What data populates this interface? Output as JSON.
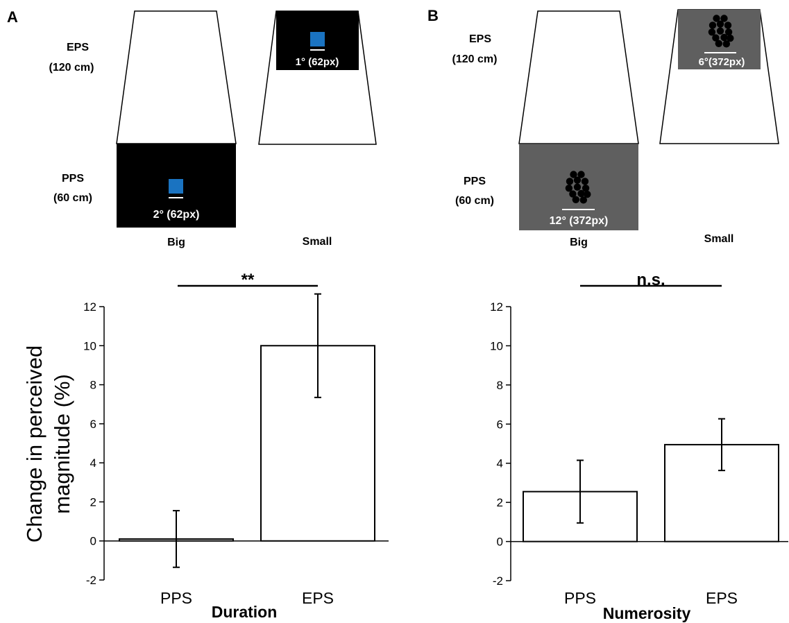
{
  "panels": [
    {
      "letter": "A",
      "eps_label": [
        "EPS",
        "(120 cm)"
      ],
      "pps_label": [
        "PPS",
        "(60 cm)"
      ],
      "big_label": "Big",
      "small_label": "Small",
      "eps_screen_text": "1° (62px)",
      "pps_screen_text": "2° (62px)",
      "stimulus": "blue-square",
      "screen_color": "#000000",
      "stimulus_color": "#1a73c1"
    },
    {
      "letter": "B",
      "eps_label": [
        "EPS",
        "(120 cm)"
      ],
      "pps_label": [
        "PPS",
        "(60 cm)"
      ],
      "big_label": "Big",
      "small_label": "Small",
      "eps_screen_text": "6°(372px)",
      "pps_screen_text": "12° (372px)",
      "stimulus": "dot-cluster",
      "screen_color": "#5f5f5f",
      "stimulus_color": "#000000"
    }
  ],
  "chart_data": [
    {
      "type": "bar",
      "title": "",
      "xlabel": "Duration",
      "ylabel": "Change in perceived magnitude (%)",
      "ylabel_lines": [
        "Change in perceived",
        "magnitude (%)"
      ],
      "categories": [
        "PPS",
        "EPS"
      ],
      "values": [
        0.1,
        10.0
      ],
      "errors": [
        1.45,
        2.65
      ],
      "ylim": [
        -2,
        12
      ],
      "yticks": [
        -2,
        0,
        2,
        4,
        6,
        8,
        10,
        12
      ],
      "significance": "**"
    },
    {
      "type": "bar",
      "title": "",
      "xlabel": "Numerosity",
      "ylabel": "",
      "categories": [
        "PPS",
        "EPS"
      ],
      "values": [
        2.55,
        4.95
      ],
      "errors": [
        1.6,
        1.32
      ],
      "ylim": [
        -2,
        12
      ],
      "yticks": [
        -2,
        0,
        2,
        4,
        6,
        8,
        10,
        12
      ],
      "significance": "n.s."
    }
  ]
}
